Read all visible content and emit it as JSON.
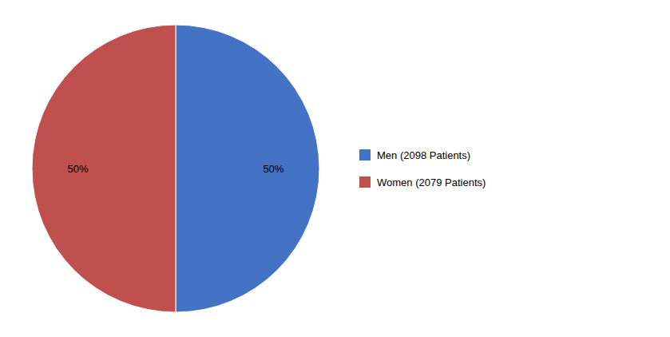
{
  "chart_data": {
    "type": "pie",
    "categories": [
      "Men (2098 Patients)",
      "Women (2079 Patients)"
    ],
    "values": [
      50,
      50
    ],
    "value_labels": [
      "50%",
      "50%"
    ],
    "colors": [
      "#4472C4",
      "#C0504D"
    ],
    "data_labels": true,
    "legend": "right"
  }
}
